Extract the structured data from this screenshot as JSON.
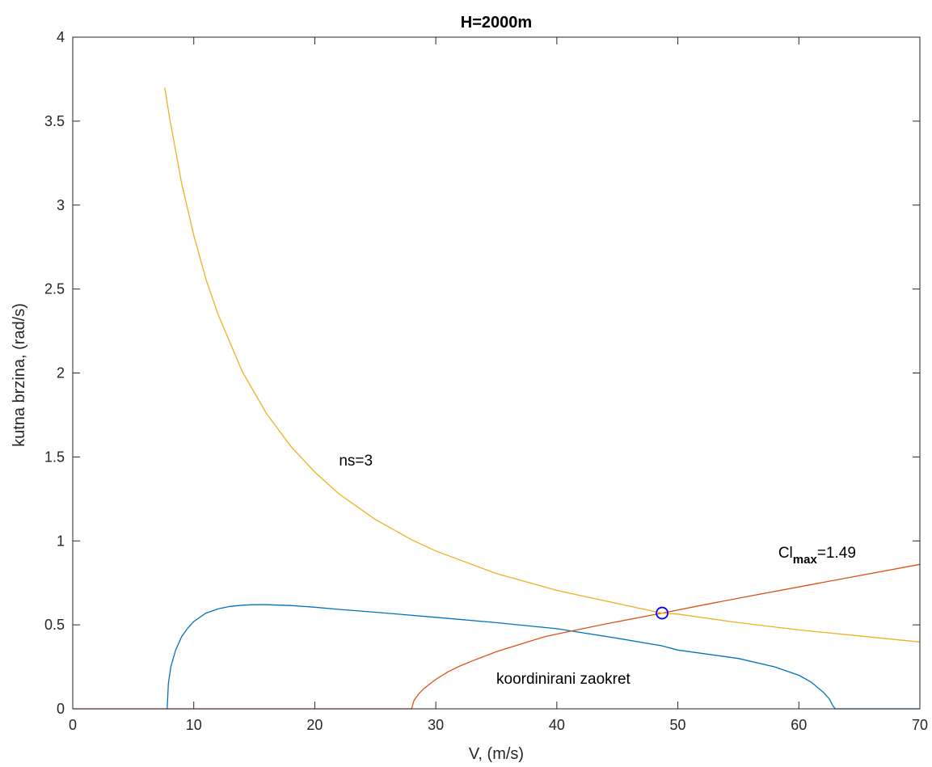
{
  "chart_data": {
    "type": "line",
    "title": "H=2000m",
    "xlabel": "V, (m/s)",
    "ylabel": "kutna brzina, (rad/s)",
    "xlim": [
      0,
      70
    ],
    "ylim": [
      0,
      4
    ],
    "xticks": [
      "0",
      "10",
      "20",
      "30",
      "40",
      "50",
      "60",
      "70"
    ],
    "yticks": [
      "0",
      "0.5",
      "1",
      "1.5",
      "2",
      "2.5",
      "3",
      "3.5",
      "4"
    ],
    "grid": false,
    "box": true,
    "series": [
      {
        "color": "#0072BD",
        "x": [
          7.8,
          7.9,
          8.1,
          8.5,
          9,
          9.5,
          10,
          11,
          12,
          13,
          14,
          15,
          16,
          18,
          20,
          22,
          25,
          28,
          30,
          35,
          40,
          45,
          48.7,
          50,
          55,
          58,
          60,
          61,
          62,
          62.5,
          62.8,
          63,
          70
        ],
        "y": [
          0,
          0.15,
          0.25,
          0.35,
          0.43,
          0.48,
          0.52,
          0.57,
          0.595,
          0.61,
          0.617,
          0.62,
          0.62,
          0.615,
          0.605,
          0.592,
          0.575,
          0.557,
          0.545,
          0.513,
          0.477,
          0.42,
          0.375,
          0.35,
          0.3,
          0.25,
          0.2,
          0.16,
          0.1,
          0.06,
          0.02,
          0,
          0
        ]
      },
      {
        "color": "#D95319",
        "x": [
          0,
          28,
          28.2,
          28.6,
          29,
          30,
          31,
          32,
          33,
          35,
          37,
          39,
          41,
          44,
          48.7,
          52,
          56,
          60,
          64,
          70
        ],
        "y": [
          0,
          0,
          0.05,
          0.09,
          0.12,
          0.175,
          0.22,
          0.255,
          0.285,
          0.34,
          0.385,
          0.43,
          0.46,
          0.505,
          0.57,
          0.617,
          0.672,
          0.726,
          0.78,
          0.86
        ]
      },
      {
        "color": "#EDB120",
        "x": [
          7.6,
          8,
          9,
          10,
          11,
          12,
          14,
          16,
          18,
          20,
          22,
          25,
          28,
          30,
          35,
          40,
          45,
          48.7,
          50,
          55,
          60,
          65,
          70
        ],
        "y": [
          3.7,
          3.52,
          3.13,
          2.82,
          2.56,
          2.35,
          2.01,
          1.76,
          1.565,
          1.41,
          1.28,
          1.128,
          1.007,
          0.94,
          0.806,
          0.705,
          0.627,
          0.57,
          0.564,
          0.513,
          0.47,
          0.434,
          0.398
        ]
      }
    ],
    "marker": {
      "x": 48.7,
      "y": 0.57,
      "color": "#0000FF",
      "shape": "circle"
    },
    "annotations": [
      {
        "text": "ns=3",
        "x": 22,
        "y": 1.45
      },
      {
        "text": "koordinirani zaokret",
        "x": 35,
        "y": 0.15
      },
      {
        "text": "Cl",
        "sub": "max",
        "suffix": "=1.49",
        "x": 58.3,
        "y": 0.9
      }
    ]
  }
}
